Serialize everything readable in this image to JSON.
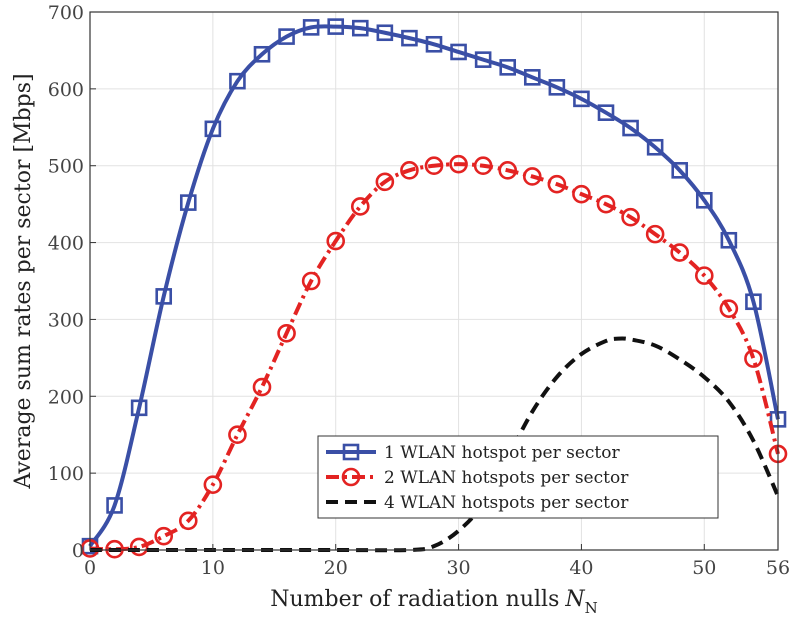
{
  "chart_data": {
    "type": "line",
    "xlabel": "Number of radiation nulls",
    "xlabel_symbol": "N",
    "xlabel_subscript": "N",
    "ylabel": "Average sum rates per sector [Mbps]",
    "xlim": [
      0,
      56
    ],
    "ylim": [
      0,
      700
    ],
    "xticks": [
      0,
      10,
      20,
      30,
      40,
      50,
      56
    ],
    "yticks": [
      0,
      100,
      200,
      300,
      400,
      500,
      600,
      700
    ],
    "grid": true,
    "legend_position": "bottom-right",
    "series": [
      {
        "name": "1 WLAN hotspot per sector",
        "color": "#3a4fa6",
        "line_style": "solid",
        "marker": "square",
        "x": [
          0,
          2,
          4,
          6,
          8,
          10,
          12,
          14,
          16,
          18,
          20,
          22,
          24,
          26,
          28,
          30,
          32,
          34,
          36,
          38,
          40,
          42,
          44,
          46,
          48,
          50,
          52,
          54,
          56
        ],
        "y": [
          5,
          58,
          185,
          330,
          452,
          548,
          610,
          645,
          668,
          680,
          681,
          679,
          673,
          666,
          658,
          648,
          638,
          628,
          615,
          602,
          587,
          569,
          549,
          524,
          494,
          455,
          403,
          323,
          170
        ]
      },
      {
        "name": "2 WLAN hotspots per sector",
        "color": "#e32322",
        "line_style": "dash-dot",
        "marker": "circle",
        "x": [
          0,
          2,
          4,
          6,
          8,
          10,
          12,
          14,
          16,
          18,
          20,
          22,
          24,
          26,
          28,
          30,
          32,
          34,
          36,
          38,
          40,
          42,
          44,
          46,
          48,
          50,
          52,
          54,
          56
        ],
        "y": [
          2,
          1,
          4,
          18,
          38,
          85,
          150,
          212,
          282,
          350,
          402,
          447,
          479,
          494,
          500,
          502,
          500,
          494,
          486,
          476,
          463,
          450,
          433,
          411,
          387,
          357,
          314,
          249,
          125
        ]
      },
      {
        "name": "4 WLAN hotspots per sector",
        "color": "#111111",
        "line_style": "dashed",
        "marker": "none",
        "x": [
          0,
          10,
          20,
          26,
          28,
          30,
          32,
          34,
          36,
          38,
          40,
          42,
          43,
          44,
          46,
          48,
          50,
          52,
          54,
          56
        ],
        "y": [
          0,
          0,
          0,
          0,
          5,
          25,
          60,
          120,
          180,
          225,
          255,
          272,
          275,
          274,
          266,
          248,
          225,
          193,
          142,
          70
        ]
      }
    ]
  }
}
